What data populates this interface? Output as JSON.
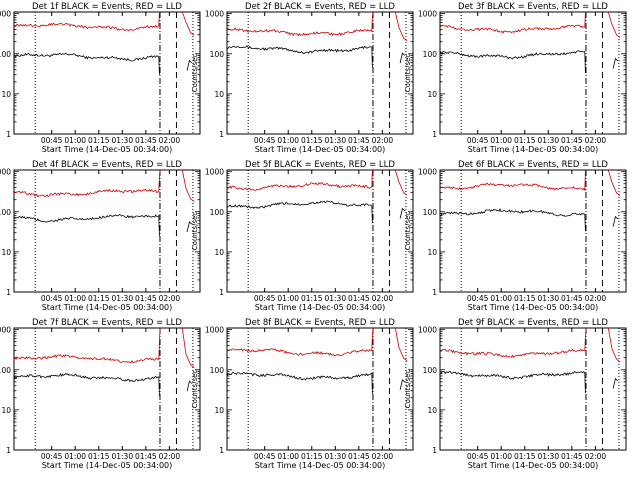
{
  "colors": {
    "events": "#000000",
    "lld": "#d00000",
    "axis": "#000000",
    "background": "#ffffff"
  },
  "chart_data": [
    {
      "type": "line",
      "title": "Det 1f BLACK = Events, RED = LLD",
      "xlabel": "Start Time (14-Dec-05 00:34:00)",
      "ylabel": "Counts/sec",
      "yscale": "log",
      "ylim": [
        1,
        1100
      ],
      "xlim": [
        0.0,
        1.58
      ],
      "xticks": [
        "00:45",
        "01:00",
        "01:15",
        "01:30",
        "01:45",
        "02:00"
      ],
      "yticks": [
        "1",
        "10",
        "100",
        "1000"
      ],
      "series": [
        {
          "name": "Events",
          "level": 85,
          "color": "#000000"
        },
        {
          "name": "LLD",
          "level": 480,
          "color": "#d00000"
        }
      ],
      "vlines": [
        {
          "x": 0.18,
          "style": "dotted"
        },
        {
          "x": 1.24,
          "style": "dashdot"
        },
        {
          "x": 1.38,
          "style": "dashed"
        },
        {
          "x": 1.52,
          "style": "dotted"
        }
      ]
    },
    {
      "type": "line",
      "title": "Det 2f BLACK = Events, RED = LLD",
      "xlabel": "Start Time (14-Dec-05 00:34:00)",
      "ylabel": "Counts/sec",
      "yscale": "log",
      "ylim": [
        1,
        1100
      ],
      "xlim": [
        0.0,
        1.58
      ],
      "xticks": [
        "00:45",
        "01:00",
        "01:15",
        "01:30",
        "01:45",
        "02:00"
      ],
      "yticks": [
        "1",
        "10",
        "100",
        "1000"
      ],
      "series": [
        {
          "name": "Events",
          "level": 130,
          "color": "#000000"
        },
        {
          "name": "LLD",
          "level": 350,
          "color": "#d00000"
        }
      ],
      "vlines": [
        {
          "x": 0.18,
          "style": "dotted"
        },
        {
          "x": 1.24,
          "style": "dashdot"
        },
        {
          "x": 1.38,
          "style": "dashed"
        },
        {
          "x": 1.52,
          "style": "dotted"
        }
      ]
    },
    {
      "type": "line",
      "title": "Det 3f BLACK = Events, RED = LLD",
      "xlabel": "Start Time (14-Dec-05 00:34:00)",
      "ylabel": "Counts/sec",
      "yscale": "log",
      "ylim": [
        1,
        1100
      ],
      "xlim": [
        0.0,
        1.58
      ],
      "xticks": [
        "00:45",
        "01:00",
        "01:15",
        "01:30",
        "01:45",
        "02:00"
      ],
      "yticks": [
        "1",
        "10",
        "100",
        "1000"
      ],
      "series": [
        {
          "name": "Events",
          "level": 95,
          "color": "#000000"
        },
        {
          "name": "LLD",
          "level": 420,
          "color": "#d00000"
        }
      ],
      "vlines": [
        {
          "x": 0.18,
          "style": "dotted"
        },
        {
          "x": 1.24,
          "style": "dashdot"
        },
        {
          "x": 1.38,
          "style": "dashed"
        },
        {
          "x": 1.52,
          "style": "dotted"
        }
      ]
    },
    {
      "type": "line",
      "title": "Det 4f BLACK = Events, RED = LLD",
      "xlabel": "Start Time (14-Dec-05 00:34:00)",
      "ylabel": "Counts/sec",
      "yscale": "log",
      "ylim": [
        1,
        1100
      ],
      "xlim": [
        0.0,
        1.58
      ],
      "xticks": [
        "00:45",
        "01:00",
        "01:15",
        "01:30",
        "01:45",
        "02:00"
      ],
      "yticks": [
        "1",
        "10",
        "100",
        "1000"
      ],
      "series": [
        {
          "name": "Events",
          "level": 70,
          "color": "#000000"
        },
        {
          "name": "LLD",
          "level": 300,
          "color": "#d00000"
        }
      ],
      "vlines": [
        {
          "x": 0.18,
          "style": "dotted"
        },
        {
          "x": 1.24,
          "style": "dashdot"
        },
        {
          "x": 1.38,
          "style": "dashed"
        },
        {
          "x": 1.52,
          "style": "dotted"
        }
      ]
    },
    {
      "type": "line",
      "title": "Det 5f BLACK = Events, RED = LLD",
      "xlabel": "Start Time (14-Dec-05 00:34:00)",
      "ylabel": "Counts/sec",
      "yscale": "log",
      "ylim": [
        1,
        1100
      ],
      "xlim": [
        0.0,
        1.58
      ],
      "xticks": [
        "00:45",
        "01:00",
        "01:15",
        "01:30",
        "01:45",
        "02:00"
      ],
      "yticks": [
        "1",
        "10",
        "100",
        "1000"
      ],
      "series": [
        {
          "name": "Events",
          "level": 150,
          "color": "#000000"
        },
        {
          "name": "LLD",
          "level": 430,
          "color": "#d00000"
        }
      ],
      "vlines": [
        {
          "x": 0.18,
          "style": "dotted"
        },
        {
          "x": 1.24,
          "style": "dashdot"
        },
        {
          "x": 1.38,
          "style": "dashed"
        },
        {
          "x": 1.52,
          "style": "dotted"
        }
      ]
    },
    {
      "type": "line",
      "title": "Det 6f BLACK = Events, RED = LLD",
      "xlabel": "Start Time (14-Dec-05 00:34:00)",
      "ylabel": "Counts/sec",
      "yscale": "log",
      "ylim": [
        1,
        1100
      ],
      "xlim": [
        0.0,
        1.58
      ],
      "xticks": [
        "00:45",
        "01:00",
        "01:15",
        "01:30",
        "01:45",
        "02:00"
      ],
      "yticks": [
        "1",
        "10",
        "100",
        "1000"
      ],
      "series": [
        {
          "name": "Events",
          "level": 95,
          "color": "#000000"
        },
        {
          "name": "LLD",
          "level": 420,
          "color": "#d00000"
        }
      ],
      "vlines": [
        {
          "x": 0.18,
          "style": "dotted"
        },
        {
          "x": 1.24,
          "style": "dashdot"
        },
        {
          "x": 1.38,
          "style": "dashed"
        },
        {
          "x": 1.52,
          "style": "dotted"
        }
      ]
    },
    {
      "type": "line",
      "title": "Det 7f BLACK = Events, RED = LLD",
      "xlabel": "Start Time (14-Dec-05 00:34:00)",
      "ylabel": "Counts/sec",
      "yscale": "log",
      "ylim": [
        1,
        1100
      ],
      "xlim": [
        0.0,
        1.58
      ],
      "xticks": [
        "00:45",
        "01:00",
        "01:15",
        "01:30",
        "01:45",
        "02:00"
      ],
      "yticks": [
        "1",
        "10",
        "100",
        "1000"
      ],
      "series": [
        {
          "name": "Events",
          "level": 65,
          "color": "#000000"
        },
        {
          "name": "LLD",
          "level": 190,
          "color": "#d00000"
        }
      ],
      "vlines": [
        {
          "x": 0.18,
          "style": "dotted"
        },
        {
          "x": 1.24,
          "style": "dashdot"
        },
        {
          "x": 1.38,
          "style": "dashed"
        },
        {
          "x": 1.52,
          "style": "dotted"
        }
      ]
    },
    {
      "type": "line",
      "title": "Det 8f BLACK = Events, RED = LLD",
      "xlabel": "Start Time (14-Dec-05 00:34:00)",
      "ylabel": "Counts/sec",
      "yscale": "log",
      "ylim": [
        1,
        1100
      ],
      "xlim": [
        0.0,
        1.58
      ],
      "xticks": [
        "00:45",
        "01:00",
        "01:15",
        "01:30",
        "01:45",
        "02:00"
      ],
      "yticks": [
        "1",
        "10",
        "100",
        "1000"
      ],
      "series": [
        {
          "name": "Events",
          "level": 70,
          "color": "#000000"
        },
        {
          "name": "LLD",
          "level": 280,
          "color": "#d00000"
        }
      ],
      "vlines": [
        {
          "x": 0.18,
          "style": "dotted"
        },
        {
          "x": 1.24,
          "style": "dashdot"
        },
        {
          "x": 1.38,
          "style": "dashed"
        },
        {
          "x": 1.52,
          "style": "dotted"
        }
      ]
    },
    {
      "type": "line",
      "title": "Det 9f BLACK = Events, RED = LLD",
      "xlabel": "Start Time (14-Dec-05 00:34:00)",
      "ylabel": "Counts/sec",
      "yscale": "log",
      "ylim": [
        1,
        1100
      ],
      "xlim": [
        0.0,
        1.58
      ],
      "xticks": [
        "00:45",
        "01:00",
        "01:15",
        "01:30",
        "01:45",
        "02:00"
      ],
      "yticks": [
        "1",
        "10",
        "100",
        "1000"
      ],
      "series": [
        {
          "name": "Events",
          "level": 75,
          "color": "#000000"
        },
        {
          "name": "LLD",
          "level": 260,
          "color": "#d00000"
        }
      ],
      "vlines": [
        {
          "x": 0.18,
          "style": "dotted"
        },
        {
          "x": 1.24,
          "style": "dashdot"
        },
        {
          "x": 1.38,
          "style": "dashed"
        },
        {
          "x": 1.52,
          "style": "dotted"
        }
      ]
    }
  ]
}
